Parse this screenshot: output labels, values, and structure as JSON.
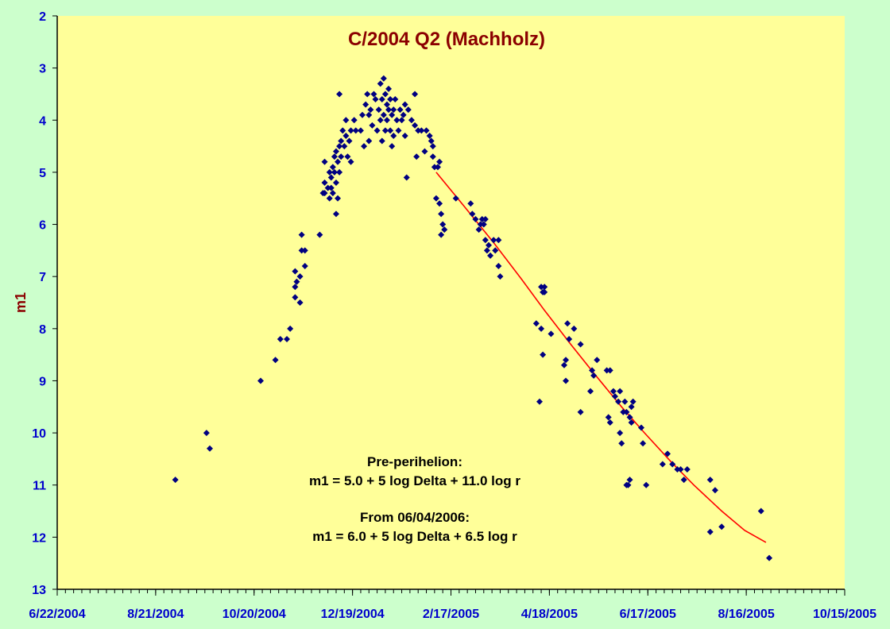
{
  "chart_data": {
    "type": "scatter",
    "title": "C/2004 Q2 (Machholz)",
    "xlabel": "",
    "ylabel": "m1",
    "ylim": [
      2,
      13
    ],
    "y_inverted": true,
    "yticks": [
      "2",
      "3",
      "4",
      "5",
      "6",
      "7",
      "8",
      "9",
      "10",
      "11",
      "12",
      "13"
    ],
    "xlim": [
      "2004-06-22",
      "2005-10-15"
    ],
    "xticks": [
      {
        "date": "2004-06-22",
        "label": "6/22/2004"
      },
      {
        "date": "2004-08-21",
        "label": "8/21/2004"
      },
      {
        "date": "2004-10-20",
        "label": "10/20/2004"
      },
      {
        "date": "2004-12-19",
        "label": "12/19/2004"
      },
      {
        "date": "2005-02-17",
        "label": "2/17/2005"
      },
      {
        "date": "2005-04-18",
        "label": "4/18/2005"
      },
      {
        "date": "2005-06-17",
        "label": "6/17/2005"
      },
      {
        "date": "2005-08-16",
        "label": "8/16/2005"
      },
      {
        "date": "2005-10-15",
        "label": "10/15/2005"
      }
    ],
    "annotations": [
      "Pre-perihelion:",
      "m1 = 5.0 + 5 log Delta + 11.0 log r",
      "From 06/04/2006:",
      "m1 = 6.0  + 5 log Delta + 6.5 log r"
    ],
    "colors": {
      "points": "#000080",
      "fit": "#ff0000",
      "plot_bg": "#ffff99",
      "page_bg": "#ccffcc",
      "title": "#8b0000",
      "ticks": "#0000cc"
    },
    "observations": [
      [
        "2004-09-02",
        10.9
      ],
      [
        "2004-09-21",
        10.0
      ],
      [
        "2004-09-23",
        10.3
      ],
      [
        "2004-10-24",
        9.0
      ],
      [
        "2004-11-02",
        8.6
      ],
      [
        "2004-11-05",
        8.2
      ],
      [
        "2004-11-09",
        8.2
      ],
      [
        "2004-11-11",
        8.0
      ],
      [
        "2004-11-14",
        7.4
      ],
      [
        "2004-11-14",
        7.2
      ],
      [
        "2004-11-14",
        6.9
      ],
      [
        "2004-11-15",
        7.1
      ],
      [
        "2004-11-17",
        7.5
      ],
      [
        "2004-11-17",
        7.0
      ],
      [
        "2004-11-18",
        6.2
      ],
      [
        "2004-11-18",
        6.5
      ],
      [
        "2004-11-20",
        6.8
      ],
      [
        "2004-11-20",
        6.5
      ],
      [
        "2004-11-29",
        6.2
      ],
      [
        "2004-12-01",
        5.4
      ],
      [
        "2004-12-02",
        5.4
      ],
      [
        "2004-12-02",
        5.2
      ],
      [
        "2004-12-02",
        4.8
      ],
      [
        "2004-12-04",
        5.3
      ],
      [
        "2004-12-05",
        5.0
      ],
      [
        "2004-12-05",
        5.5
      ],
      [
        "2004-12-06",
        5.3
      ],
      [
        "2004-12-06",
        5.1
      ],
      [
        "2004-12-07",
        4.9
      ],
      [
        "2004-12-07",
        5.4
      ],
      [
        "2004-12-08",
        4.7
      ],
      [
        "2004-12-08",
        5.0
      ],
      [
        "2004-12-09",
        4.6
      ],
      [
        "2004-12-09",
        5.2
      ],
      [
        "2004-12-09",
        5.8
      ],
      [
        "2004-12-10",
        4.8
      ],
      [
        "2004-12-10",
        5.5
      ],
      [
        "2004-12-11",
        4.5
      ],
      [
        "2004-12-11",
        5.0
      ],
      [
        "2004-12-11",
        3.5
      ],
      [
        "2004-12-12",
        4.4
      ],
      [
        "2004-12-12",
        4.7
      ],
      [
        "2004-12-13",
        4.2
      ],
      [
        "2004-12-14",
        4.5
      ],
      [
        "2004-12-15",
        4.3
      ],
      [
        "2004-12-15",
        4.0
      ],
      [
        "2004-12-16",
        4.7
      ],
      [
        "2004-12-17",
        4.4
      ],
      [
        "2004-12-18",
        4.2
      ],
      [
        "2004-12-18",
        4.8
      ],
      [
        "2004-12-20",
        4.0
      ],
      [
        "2004-12-21",
        4.2
      ],
      [
        "2004-12-24",
        4.2
      ],
      [
        "2004-12-25",
        3.9
      ],
      [
        "2004-12-26",
        4.5
      ],
      [
        "2004-12-27",
        3.7
      ],
      [
        "2004-12-28",
        3.5
      ],
      [
        "2004-12-29",
        4.4
      ],
      [
        "2004-12-29",
        3.9
      ],
      [
        "2004-12-30",
        3.8
      ],
      [
        "2004-12-31",
        4.1
      ],
      [
        "2005-01-01",
        3.5
      ],
      [
        "2005-01-02",
        3.6
      ],
      [
        "2005-01-03",
        4.2
      ],
      [
        "2005-01-04",
        3.8
      ],
      [
        "2005-01-05",
        3.3
      ],
      [
        "2005-01-05",
        4.0
      ],
      [
        "2005-01-06",
        3.6
      ],
      [
        "2005-01-06",
        4.4
      ],
      [
        "2005-01-07",
        3.2
      ],
      [
        "2005-01-07",
        3.9
      ],
      [
        "2005-01-08",
        3.5
      ],
      [
        "2005-01-08",
        4.2
      ],
      [
        "2005-01-09",
        3.7
      ],
      [
        "2005-01-09",
        4.0
      ],
      [
        "2005-01-10",
        3.4
      ],
      [
        "2005-01-10",
        3.8
      ],
      [
        "2005-01-11",
        3.6
      ],
      [
        "2005-01-11",
        4.2
      ],
      [
        "2005-01-12",
        3.9
      ],
      [
        "2005-01-12",
        4.5
      ],
      [
        "2005-01-13",
        3.8
      ],
      [
        "2005-01-13",
        4.3
      ],
      [
        "2005-01-14",
        3.6
      ],
      [
        "2005-01-15",
        4.0
      ],
      [
        "2005-01-16",
        4.2
      ],
      [
        "2005-01-17",
        3.8
      ],
      [
        "2005-01-18",
        4.0
      ],
      [
        "2005-01-19",
        3.9
      ],
      [
        "2005-01-20",
        3.7
      ],
      [
        "2005-01-20",
        4.3
      ],
      [
        "2005-01-21",
        5.1
      ],
      [
        "2005-01-22",
        3.8
      ],
      [
        "2005-01-24",
        4.0
      ],
      [
        "2005-01-26",
        3.5
      ],
      [
        "2005-01-27",
        4.7
      ],
      [
        "2005-01-26",
        4.1
      ],
      [
        "2005-01-28",
        4.2
      ],
      [
        "2005-01-30",
        4.2
      ],
      [
        "2005-02-01",
        4.6
      ],
      [
        "2005-02-02",
        4.2
      ],
      [
        "2005-02-04",
        4.3
      ],
      [
        "2005-02-05",
        4.4
      ],
      [
        "2005-02-06",
        4.5
      ],
      [
        "2005-02-06",
        4.7
      ],
      [
        "2005-02-07",
        4.9
      ],
      [
        "2005-02-08",
        5.5
      ],
      [
        "2005-02-09",
        4.9
      ],
      [
        "2005-02-10",
        5.6
      ],
      [
        "2005-02-10",
        4.8
      ],
      [
        "2005-02-11",
        5.8
      ],
      [
        "2005-02-11",
        6.2
      ],
      [
        "2005-02-12",
        6.0
      ],
      [
        "2005-02-13",
        6.1
      ],
      [
        "2005-02-20",
        5.5
      ],
      [
        "2005-03-01",
        5.6
      ],
      [
        "2005-03-02",
        5.8
      ],
      [
        "2005-03-04",
        5.9
      ],
      [
        "2005-03-06",
        6.1
      ],
      [
        "2005-03-07",
        6.0
      ],
      [
        "2005-03-08",
        5.9
      ],
      [
        "2005-03-09",
        6.0
      ],
      [
        "2005-03-10",
        6.3
      ],
      [
        "2005-03-10",
        5.9
      ],
      [
        "2005-03-11",
        6.5
      ],
      [
        "2005-03-12",
        6.4
      ],
      [
        "2005-03-13",
        6.6
      ],
      [
        "2005-03-15",
        6.3
      ],
      [
        "2005-03-16",
        6.5
      ],
      [
        "2005-03-18",
        6.8
      ],
      [
        "2005-03-19",
        7.0
      ],
      [
        "2005-03-18",
        6.3
      ],
      [
        "2005-04-10",
        7.9
      ],
      [
        "2005-04-12",
        9.4
      ],
      [
        "2005-04-13",
        8.0
      ],
      [
        "2005-04-13",
        7.2
      ],
      [
        "2005-04-14",
        7.3
      ],
      [
        "2005-04-14",
        8.5
      ],
      [
        "2005-04-15",
        7.2
      ],
      [
        "2005-04-15",
        7.3
      ],
      [
        "2005-04-19",
        8.1
      ],
      [
        "2005-04-27",
        8.7
      ],
      [
        "2005-04-28",
        9.0
      ],
      [
        "2005-04-28",
        8.6
      ],
      [
        "2005-04-29",
        7.9
      ],
      [
        "2005-04-30",
        8.2
      ],
      [
        "2005-05-03",
        8.0
      ],
      [
        "2005-05-07",
        8.3
      ],
      [
        "2005-05-07",
        9.6
      ],
      [
        "2005-05-13",
        9.2
      ],
      [
        "2005-05-14",
        8.8
      ],
      [
        "2005-05-15",
        8.9
      ],
      [
        "2005-05-17",
        8.6
      ],
      [
        "2005-05-23",
        8.8
      ],
      [
        "2005-05-24",
        9.7
      ],
      [
        "2005-05-25",
        8.8
      ],
      [
        "2005-05-25",
        9.8
      ],
      [
        "2005-05-27",
        9.2
      ],
      [
        "2005-05-28",
        9.3
      ],
      [
        "2005-05-30",
        9.4
      ],
      [
        "2005-05-31",
        9.2
      ],
      [
        "2005-05-31",
        10.0
      ],
      [
        "2005-06-01",
        10.2
      ],
      [
        "2005-06-02",
        9.6
      ],
      [
        "2005-06-03",
        9.4
      ],
      [
        "2005-06-04",
        11.0
      ],
      [
        "2005-06-04",
        9.6
      ],
      [
        "2005-06-05",
        11.0
      ],
      [
        "2005-06-06",
        9.7
      ],
      [
        "2005-06-06",
        10.9
      ],
      [
        "2005-06-07",
        9.5
      ],
      [
        "2005-06-07",
        9.8
      ],
      [
        "2005-06-08",
        9.4
      ],
      [
        "2005-06-13",
        9.9
      ],
      [
        "2005-06-14",
        10.2
      ],
      [
        "2005-06-16",
        11.0
      ],
      [
        "2005-06-26",
        10.6
      ],
      [
        "2005-06-29",
        10.4
      ],
      [
        "2005-07-02",
        10.6
      ],
      [
        "2005-07-05",
        10.7
      ],
      [
        "2005-07-07",
        10.7
      ],
      [
        "2005-07-09",
        10.9
      ],
      [
        "2005-07-11",
        10.7
      ],
      [
        "2005-07-25",
        10.9
      ],
      [
        "2005-07-25",
        11.9
      ],
      [
        "2005-07-28",
        11.1
      ],
      [
        "2005-08-01",
        11.8
      ],
      [
        "2005-08-25",
        11.5
      ],
      [
        "2005-08-30",
        12.4
      ]
    ],
    "fit_curve": [
      [
        "2005-02-08",
        5.0
      ],
      [
        "2005-02-25",
        5.65
      ],
      [
        "2005-03-15",
        6.35
      ],
      [
        "2005-04-01",
        7.05
      ],
      [
        "2005-04-15",
        7.65
      ],
      [
        "2005-05-01",
        8.3
      ],
      [
        "2005-05-15",
        8.85
      ],
      [
        "2005-06-01",
        9.5
      ],
      [
        "2005-06-15",
        10.0
      ],
      [
        "2005-07-01",
        10.55
      ],
      [
        "2005-07-15",
        11.0
      ],
      [
        "2005-08-01",
        11.5
      ],
      [
        "2005-08-15",
        11.87
      ],
      [
        "2005-08-28",
        12.1
      ]
    ]
  }
}
